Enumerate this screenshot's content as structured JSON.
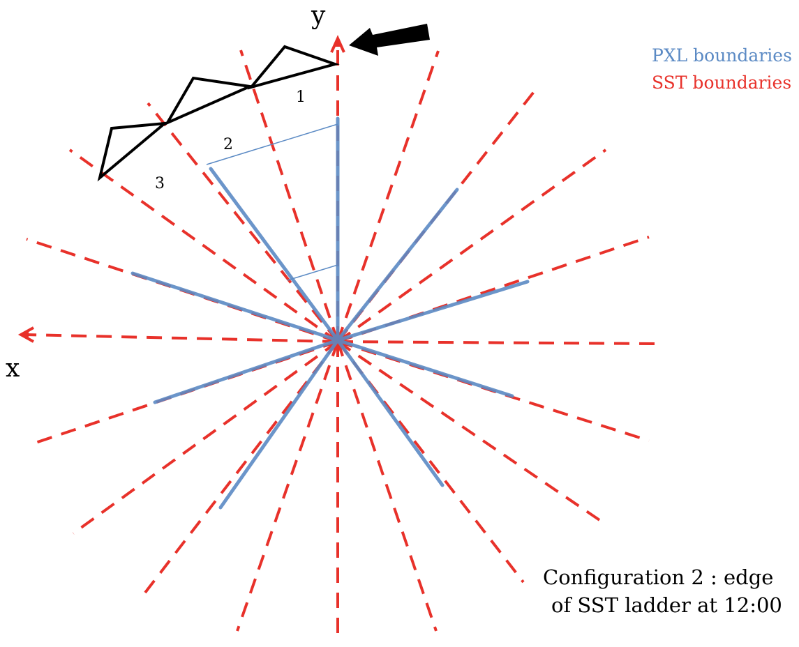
{
  "axes": {
    "x_label": "x",
    "y_label": "y"
  },
  "legend": {
    "items": [
      {
        "label": "PXL boundaries",
        "color": "#5b8ac4"
      },
      {
        "label": "SST boundaries",
        "color": "#e8312a"
      }
    ]
  },
  "ladder_labels": [
    "1",
    "2",
    "3"
  ],
  "caption": {
    "line1": "Configuration 2 : edge",
    "line2": "of SST ladder at 12:00"
  },
  "colors": {
    "sst": "#e8312a",
    "pxl": "#5b8ac4",
    "ladder": "#000000",
    "pxl_thin": "#5b8ac4"
  }
}
